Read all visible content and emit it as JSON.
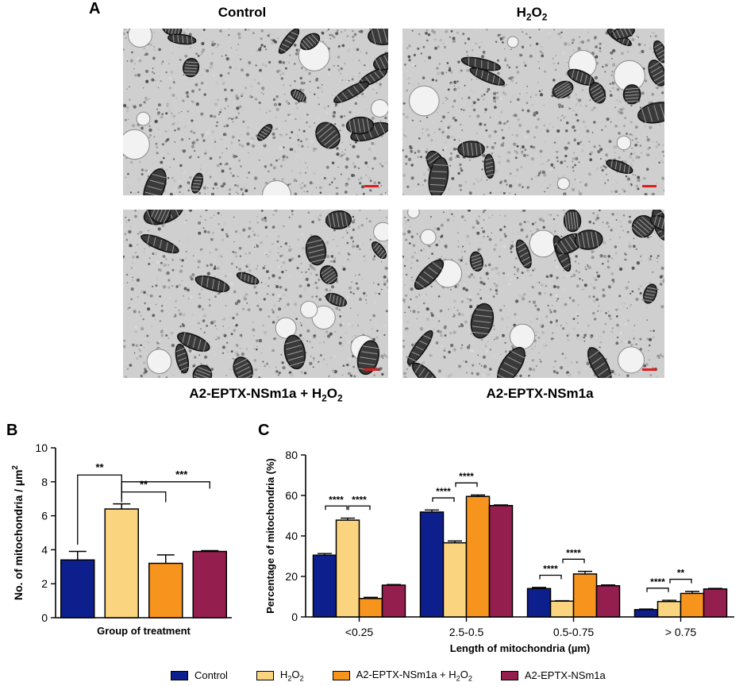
{
  "panel_a": {
    "letter": "A",
    "images": [
      {
        "title": "Control",
        "title_sub": "",
        "title_tail": ""
      },
      {
        "title": "H",
        "title_sub": "2",
        "title_tail": "O",
        "title_sub2": "2"
      },
      {
        "title": "A2-EPTX-NSm1a + H",
        "title_sub": "2",
        "title_tail": "O",
        "title_sub2": "2"
      },
      {
        "title": "A2-EPTX-NSm1a",
        "title_sub": "",
        "title_tail": ""
      }
    ],
    "scale_bar_color": "#e21b1b"
  },
  "legend": {
    "items": [
      {
        "label": "Control",
        "color": "#0d1f8c"
      },
      {
        "label": "H",
        "sub": "2",
        "tail": "O",
        "sub2": "2",
        "color": "#fbd47f"
      },
      {
        "label": "A2-EPTX-NSm1a + H",
        "sub": "2",
        "tail": "O",
        "sub2": "2",
        "color": "#f7941d"
      },
      {
        "label": "A2-EPTX-NSm1a",
        "color": "#941f4f"
      }
    ]
  },
  "chart_data": [
    {
      "panel_letter": "B",
      "type": "bar",
      "xlabel": "Group of treatment",
      "ylabel": "No. of mitochondria / µm",
      "ylabel_sup": "2",
      "ylim": [
        0,
        10
      ],
      "yticks": [
        0,
        2,
        4,
        6,
        8,
        10
      ],
      "categories": [
        "Control",
        "H2O2",
        "A2-EPTX-NSm1a + H2O2",
        "A2-EPTX-NSm1a"
      ],
      "values": [
        3.4,
        6.4,
        3.2,
        3.9
      ],
      "errors": [
        0.5,
        0.3,
        0.5,
        0.05
      ],
      "colors": [
        "#0d1f8c",
        "#fbd47f",
        "#f7941d",
        "#941f4f"
      ],
      "significance": [
        {
          "from": 0,
          "to": 1,
          "label": "**"
        },
        {
          "from": 1,
          "to": 2,
          "label": "**"
        },
        {
          "from": 1,
          "to": 3,
          "label": "***"
        }
      ]
    },
    {
      "panel_letter": "C",
      "type": "bar",
      "xlabel": "Length of mitochondria (µm)",
      "ylabel": "Percentage of mitochondria (%)",
      "ylim": [
        0,
        80
      ],
      "yticks": [
        0,
        20,
        40,
        60,
        80
      ],
      "categories": [
        "<0.25",
        "2.5-0.5",
        "0.5-0.75",
        "> 0.75"
      ],
      "series": [
        {
          "name": "Control",
          "values": [
            30.5,
            51.8,
            14.0,
            3.6
          ],
          "errors": [
            0.8,
            1.0,
            0.6,
            0.3
          ],
          "color": "#0d1f8c"
        },
        {
          "name": "H2O2",
          "values": [
            47.8,
            36.6,
            7.8,
            7.6
          ],
          "errors": [
            1.0,
            0.9,
            0.2,
            0.6
          ],
          "color": "#fbd47f"
        },
        {
          "name": "A2-EPTX-NSm1a + H2O2",
          "values": [
            9.1,
            59.5,
            21.2,
            11.6
          ],
          "errors": [
            0.6,
            0.7,
            1.3,
            1.0
          ],
          "color": "#f7941d"
        },
        {
          "name": "A2-EPTX-NSm1a",
          "values": [
            15.7,
            55.0,
            15.4,
            13.8
          ],
          "errors": [
            0.3,
            0.3,
            0.4,
            0.3
          ],
          "color": "#941f4f"
        }
      ],
      "significance": [
        {
          "group": 0,
          "from": 0,
          "to": 1,
          "label": "****"
        },
        {
          "group": 0,
          "from": 1,
          "to": 2,
          "label": "****"
        },
        {
          "group": 1,
          "from": 0,
          "to": 1,
          "label": "****"
        },
        {
          "group": 1,
          "from": 1,
          "to": 2,
          "label": "****"
        },
        {
          "group": 2,
          "from": 0,
          "to": 1,
          "label": "****"
        },
        {
          "group": 2,
          "from": 1,
          "to": 2,
          "label": "****"
        },
        {
          "group": 3,
          "from": 0,
          "to": 1,
          "label": "****"
        },
        {
          "group": 3,
          "from": 1,
          "to": 2,
          "label": "**"
        }
      ]
    }
  ]
}
